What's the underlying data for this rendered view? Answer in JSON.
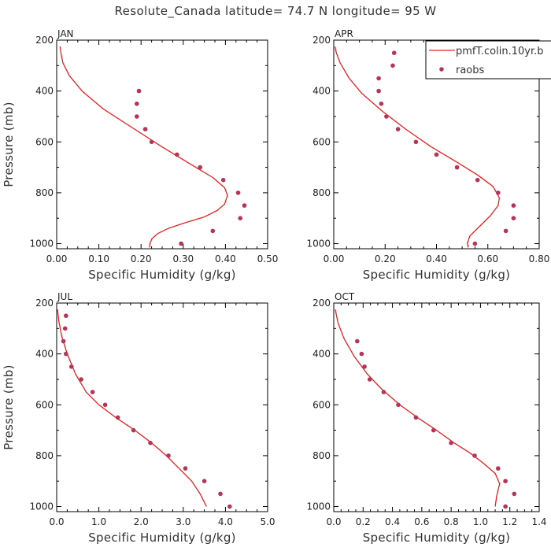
{
  "figure": {
    "title": "Resolute_Canada  latitude= 74.7 N longitude= 95 W"
  },
  "colors": {
    "model": "#e8211f",
    "raobs": "#b5345a",
    "axis": "#000000",
    "text": "#333333"
  },
  "legend": {
    "model_label": "pmfT.colin.10yr.b",
    "raobs_label": "raobs",
    "placement": "top-right of APR panel"
  },
  "chart_data": [
    {
      "type": "line",
      "panel": "JAN",
      "xlabel": "Specific Humidity (g/kg)",
      "ylabel": "Pressure (mb)",
      "xlim": [
        0,
        0.5
      ],
      "ylim": [
        1020,
        200
      ],
      "xticks": [
        "0.00",
        "0.10",
        "0.20",
        "0.30",
        "0.40",
        "0.50"
      ],
      "yticks": [
        "200",
        "400",
        "600",
        "800",
        "1000"
      ],
      "series": [
        {
          "name": "pmfT.colin.10yr.b",
          "kind": "line",
          "x": [
            0.22,
            0.221,
            0.226,
            0.24,
            0.265,
            0.3,
            0.35,
            0.38,
            0.398,
            0.405,
            0.398,
            0.37,
            0.32,
            0.25,
            0.18,
            0.11,
            0.06,
            0.03,
            0.015,
            0.01,
            0.008
          ],
          "y": [
            1015,
            1000,
            980,
            960,
            940,
            920,
            895,
            870,
            845,
            810,
            780,
            740,
            690,
            620,
            545,
            470,
            400,
            340,
            290,
            250,
            225
          ]
        },
        {
          "name": "raobs",
          "kind": "scatter",
          "x": [
            0.195,
            0.19,
            0.19,
            0.21,
            0.225,
            0.285,
            0.34,
            0.395,
            0.43,
            0.445,
            0.435,
            0.37,
            0.295
          ],
          "y": [
            400,
            450,
            500,
            550,
            600,
            650,
            700,
            750,
            800,
            850,
            900,
            950,
            1000
          ]
        }
      ]
    },
    {
      "type": "line",
      "panel": "APR",
      "xlabel": "Specific Humidity (g/kg)",
      "ylabel": "",
      "xlim": [
        0,
        0.8
      ],
      "ylim": [
        1020,
        200
      ],
      "xticks": [
        "0.00",
        "0.20",
        "0.40",
        "0.60",
        "0.80"
      ],
      "yticks": [
        "200",
        "400",
        "600",
        "800",
        "1000"
      ],
      "series": [
        {
          "name": "pmfT.colin.10yr.b",
          "kind": "line",
          "x": [
            0.525,
            0.52,
            0.53,
            0.57,
            0.61,
            0.64,
            0.645,
            0.62,
            0.56,
            0.48,
            0.38,
            0.28,
            0.19,
            0.11,
            0.06,
            0.025,
            0.01,
            0.005
          ],
          "y": [
            1015,
            1000,
            970,
            930,
            890,
            850,
            820,
            775,
            730,
            680,
            620,
            550,
            480,
            410,
            350,
            290,
            250,
            225
          ]
        },
        {
          "name": "raobs",
          "kind": "scatter",
          "x": [
            0.235,
            0.23,
            0.175,
            0.175,
            0.185,
            0.205,
            0.25,
            0.32,
            0.4,
            0.48,
            0.56,
            0.64,
            0.7,
            0.7,
            0.67,
            0.55
          ],
          "y": [
            250,
            300,
            350,
            400,
            450,
            500,
            550,
            600,
            650,
            700,
            750,
            800,
            850,
            900,
            950,
            1000
          ]
        }
      ]
    },
    {
      "type": "line",
      "panel": "JUL",
      "xlabel": "Specific Humidity (g/kg)",
      "ylabel": "Pressure (mb)",
      "xlim": [
        0,
        5.0
      ],
      "ylim": [
        1020,
        200
      ],
      "xticks": [
        "0.0",
        "1.0",
        "2.0",
        "3.0",
        "4.0",
        "5.0"
      ],
      "yticks": [
        "200",
        "400",
        "600",
        "800",
        "1000"
      ],
      "series": [
        {
          "name": "pmfT.colin.10yr.b",
          "kind": "line",
          "x": [
            3.55,
            3.4,
            3.2,
            2.9,
            2.6,
            2.25,
            1.85,
            1.4,
            1.0,
            0.7,
            0.45,
            0.25,
            0.12,
            0.05,
            0.02
          ],
          "y": [
            1000,
            950,
            900,
            850,
            800,
            750,
            700,
            650,
            600,
            550,
            480,
            400,
            330,
            270,
            225
          ]
        },
        {
          "name": "raobs",
          "kind": "scatter",
          "x": [
            0.22,
            0.2,
            0.16,
            0.22,
            0.35,
            0.58,
            0.85,
            1.15,
            1.45,
            1.82,
            2.22,
            2.65,
            3.05,
            3.5,
            3.88,
            4.1
          ],
          "y": [
            250,
            300,
            350,
            400,
            450,
            500,
            550,
            600,
            650,
            700,
            750,
            800,
            850,
            900,
            950,
            1000
          ]
        }
      ]
    },
    {
      "type": "line",
      "panel": "OCT",
      "xlabel": "Specific Humidity (g/kg)",
      "ylabel": "",
      "xlim": [
        0,
        1.4
      ],
      "ylim": [
        1020,
        200
      ],
      "xticks": [
        "0.0",
        "0.2",
        "0.4",
        "0.6",
        "0.8",
        "1.0",
        "1.2",
        "1.4"
      ],
      "yticks": [
        "200",
        "400",
        "600",
        "800",
        "1000"
      ],
      "series": [
        {
          "name": "pmfT.colin.10yr.b",
          "kind": "line",
          "x": [
            1.1,
            1.11,
            1.13,
            1.1,
            1.02,
            0.93,
            0.82,
            0.7,
            0.57,
            0.45,
            0.33,
            0.23,
            0.14,
            0.07,
            0.03,
            0.01
          ],
          "y": [
            1000,
            960,
            910,
            870,
            830,
            790,
            750,
            700,
            650,
            600,
            540,
            480,
            410,
            340,
            280,
            225
          ]
        },
        {
          "name": "raobs",
          "kind": "scatter",
          "x": [
            0.16,
            0.19,
            0.21,
            0.245,
            0.34,
            0.44,
            0.56,
            0.68,
            0.8,
            0.96,
            1.12,
            1.17,
            1.23,
            1.17
          ],
          "y": [
            350,
            400,
            450,
            500,
            550,
            600,
            650,
            700,
            750,
            800,
            850,
            900,
            950,
            1000
          ]
        }
      ]
    }
  ]
}
